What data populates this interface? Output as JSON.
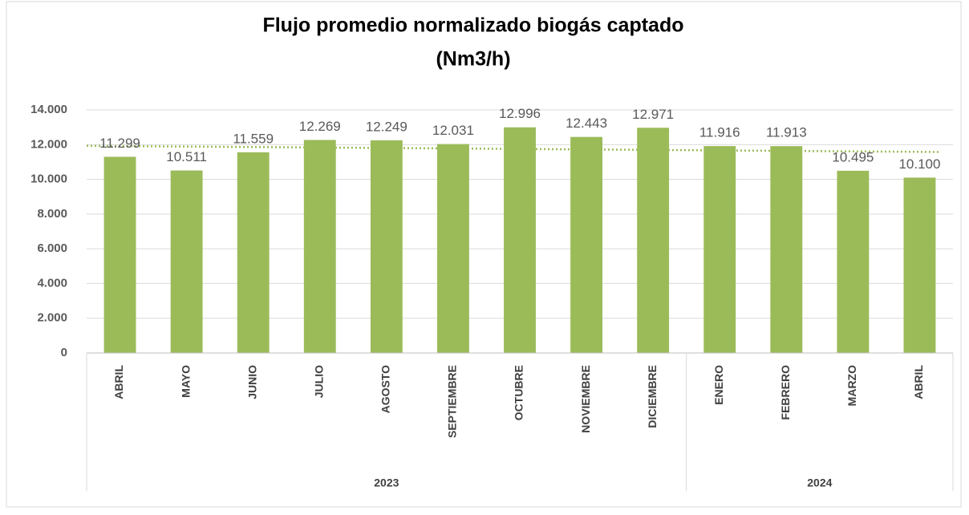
{
  "chart_data": {
    "type": "bar",
    "title": "Flujo promedio normalizado biogás captado",
    "subtitle": "(Nm3/h)",
    "categories": [
      "ABRIL",
      "MAYO",
      "JUNIO",
      "JULIO",
      "AGOSTO",
      "SEPTIEMBRE",
      "OCTUBRE",
      "NOVIEMBRE",
      "DICIEMBRE",
      "ENERO",
      "FEBRERO",
      "MARZO",
      "ABRIL"
    ],
    "groups": [
      {
        "name": "2023",
        "size": 9
      },
      {
        "name": "2024",
        "size": 4
      }
    ],
    "values": [
      11299,
      10511,
      11559,
      12269,
      12249,
      12031,
      12996,
      12443,
      12971,
      11916,
      11913,
      10495,
      10100
    ],
    "value_labels": [
      "11.299",
      "10.511",
      "11.559",
      "12.269",
      "12.249",
      "12.031",
      "12.996",
      "12.443",
      "12.971",
      "11.916",
      "11.913",
      "10.495",
      "10.100"
    ],
    "color": "#9bbb59",
    "trendline": true,
    "ylim": [
      0,
      14000
    ],
    "yticks": [
      0,
      {
        "value": 2000,
        "label": "2.000"
      },
      {
        "value": 4000,
        "label": "4.000"
      },
      {
        "value": 6000,
        "label": "6.000"
      },
      {
        "value": 8000,
        "label": "8.000"
      },
      {
        "value": 10000,
        "label": "10.000"
      },
      {
        "value": 12000,
        "label": "12.000"
      },
      {
        "value": 14000,
        "label": "14.000"
      }
    ],
    "grid": true
  }
}
